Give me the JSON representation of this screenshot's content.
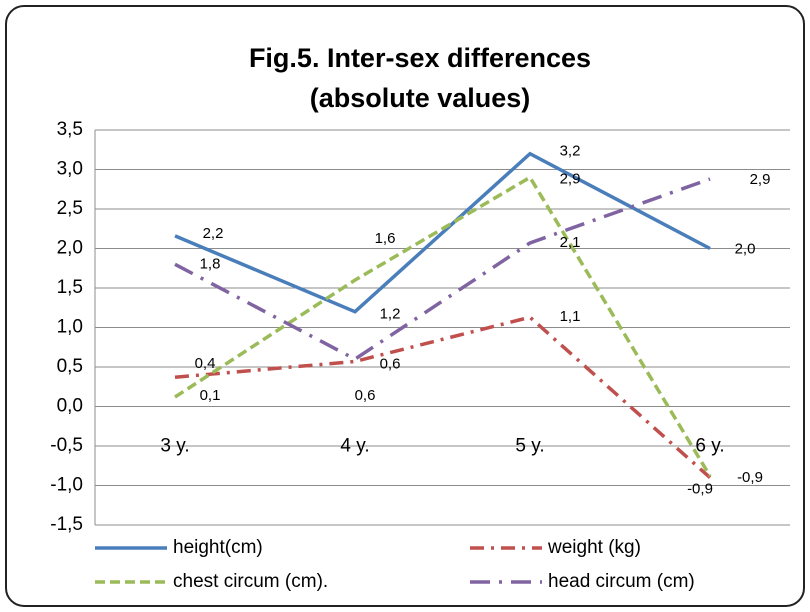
{
  "chart_data": {
    "type": "line",
    "title": [
      "Fig.5. Inter-sex differences",
      "(absolute  values)"
    ],
    "categories": [
      "3 y.",
      "4 y.",
      "5 y.",
      "6 y."
    ],
    "series": [
      {
        "name": "height(cm)",
        "color": "#4a7ebb",
        "dash": "solid",
        "values": [
          2.16,
          1.2,
          3.2,
          2.0
        ],
        "value_labels": [
          "2,2",
          "1,2",
          "3,2",
          "2,0"
        ]
      },
      {
        "name": "weight (kg)",
        "color": "#c0504d",
        "dash": "dash-dot",
        "values": [
          0.37,
          0.57,
          1.13,
          -0.9
        ],
        "value_labels": [
          "0,4",
          "0,6",
          "1,1",
          "-0,9"
        ]
      },
      {
        "name": "chest circum (cm).",
        "color": "#9bbb59",
        "dash": "dash",
        "values": [
          0.12,
          1.6,
          2.9,
          -0.88
        ],
        "value_labels": [
          "0,1",
          "1,6",
          "2,9",
          "-0,9"
        ]
      },
      {
        "name": "head circum (cm)",
        "color": "#8064a2",
        "dash": "long-dash-dot",
        "values": [
          1.8,
          0.6,
          2.07,
          2.88
        ],
        "value_labels": [
          "1,8",
          "0,6",
          "2,1",
          "2,9"
        ]
      }
    ],
    "ylim": [
      -1.5,
      3.5
    ],
    "yticks": [
      {
        "value": -1.5,
        "label": "-1,5"
      },
      {
        "value": -1,
        "label": "-1,0"
      },
      {
        "value": -0.5,
        "label": "-0,5"
      },
      {
        "value": 0,
        "label": "0,0"
      },
      {
        "value": 0.5,
        "label": "0,5"
      },
      {
        "value": 1,
        "label": "1,0"
      },
      {
        "value": 1.5,
        "label": "1,5"
      },
      {
        "value": 2,
        "label": "2,0"
      },
      {
        "value": 2.5,
        "label": "2,5"
      },
      {
        "value": 3,
        "label": "3,0"
      },
      {
        "value": 3.5,
        "label": "3,5"
      }
    ],
    "grid": true,
    "legend": "bottom"
  }
}
